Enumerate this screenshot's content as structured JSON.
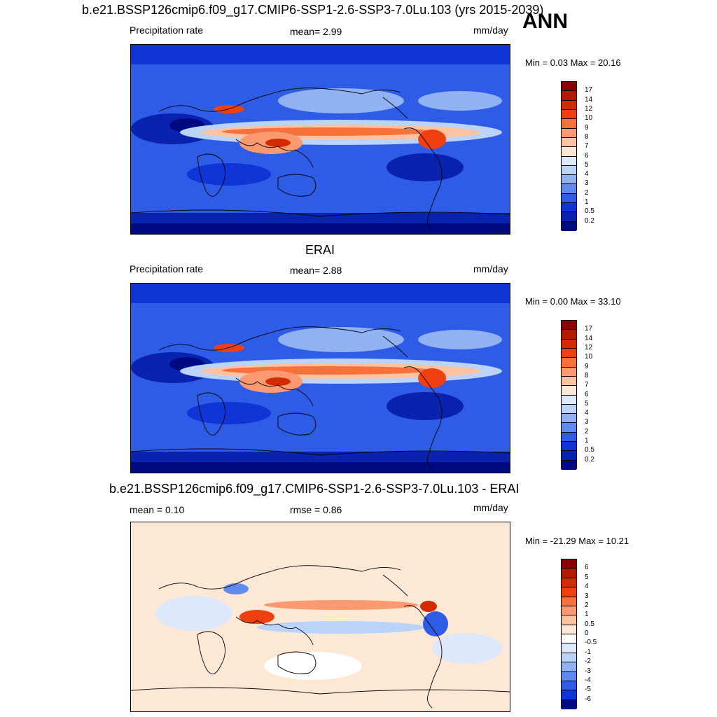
{
  "header": {
    "title": "b.e21.BSSP126cmip6.f09_g17.CMIP6-SSP1-2.6-SSP3-7.0Lu.103 (yrs 2015-2039)",
    "season": "ANN"
  },
  "panels": [
    {
      "title": "",
      "left_label": "Precipitation rate",
      "center_label": "mean=   2.99",
      "units": "mm/day",
      "minmax": "Min =   0.03 Max =  20.16",
      "colorbar": {
        "labels": [
          "17",
          "14",
          "12",
          "10",
          "9",
          "8",
          "7",
          "6",
          "5",
          "4",
          "3",
          "2",
          "1",
          "0.5",
          "0.2"
        ],
        "colors": [
          "#8b0000",
          "#b21a00",
          "#d42a00",
          "#f04010",
          "#f8703a",
          "#fb9970",
          "#fdc2a0",
          "#fde8d6",
          "#dde9fb",
          "#bcd3f8",
          "#90b2f2",
          "#5f8aee",
          "#2f5ce6",
          "#0f35d6",
          "#0a22b0",
          "#000a80"
        ]
      }
    },
    {
      "title": "ERAI",
      "left_label": "Precipitation rate",
      "center_label": "mean=   2.88",
      "units": "mm/day",
      "minmax": "Min =   0.00 Max =  33.10",
      "colorbar": {
        "labels": [
          "17",
          "14",
          "12",
          "10",
          "9",
          "8",
          "7",
          "6",
          "5",
          "4",
          "3",
          "2",
          "1",
          "0.5",
          "0.2"
        ],
        "colors": [
          "#8b0000",
          "#b21a00",
          "#d42a00",
          "#f04010",
          "#f8703a",
          "#fb9970",
          "#fdc2a0",
          "#fde8d6",
          "#dde9fb",
          "#bcd3f8",
          "#90b2f2",
          "#5f8aee",
          "#2f5ce6",
          "#0f35d6",
          "#0a22b0",
          "#000a80"
        ]
      }
    },
    {
      "title": "b.e21.BSSP126cmip6.f09_g17.CMIP6-SSP1-2.6-SSP3-7.0Lu.103 - ERAI",
      "left_label": "mean =   0.10",
      "center_label": "rmse =   0.86",
      "units": "mm/day",
      "minmax": "Min = -21.29 Max =  10.21",
      "colorbar": {
        "labels": [
          "6",
          "5",
          "4",
          "3",
          "2",
          "1",
          "0.5",
          "0",
          "-0.5",
          "-1",
          "-2",
          "-3",
          "-4",
          "-5",
          "-6"
        ],
        "colors": [
          "#8b0000",
          "#b21a00",
          "#d42a00",
          "#f04010",
          "#f8703a",
          "#fb9970",
          "#fdc2a0",
          "#fde8d6",
          "#ffffff",
          "#dde9fb",
          "#bcd3f8",
          "#90b2f2",
          "#5f8aee",
          "#2f5ce6",
          "#0f35d6",
          "#000a80"
        ]
      }
    }
  ],
  "chart_data": {
    "type": "heatmap",
    "title": "b.e21.BSSP126cmip6.f09_g17.CMIP6-SSP1-2.6-SSP3-7.0Lu.103 (yrs 2015-2039)",
    "season": "ANN",
    "variable": "Precipitation rate",
    "units": "mm/day",
    "panels": [
      {
        "name": "b.e21.BSSP126cmip6.f09_g17.CMIP6-SSP1-2.6-SSP3-7.0Lu.103 (yrs 2015-2039)",
        "mean": 2.99,
        "min": 0.03,
        "max": 20.16,
        "contour_levels": [
          0.2,
          0.5,
          1,
          2,
          3,
          4,
          5,
          6,
          7,
          8,
          9,
          10,
          12,
          14,
          17
        ]
      },
      {
        "name": "ERAI",
        "mean": 2.88,
        "min": 0.0,
        "max": 33.1,
        "contour_levels": [
          0.2,
          0.5,
          1,
          2,
          3,
          4,
          5,
          6,
          7,
          8,
          9,
          10,
          12,
          14,
          17
        ]
      },
      {
        "name": "b.e21.BSSP126cmip6.f09_g17.CMIP6-SSP1-2.6-SSP3-7.0Lu.103 - ERAI",
        "mean": 0.1,
        "rmse": 0.86,
        "min": -21.29,
        "max": 10.21,
        "contour_levels": [
          -6,
          -5,
          -4,
          -3,
          -2,
          -1,
          -0.5,
          0,
          0.5,
          1,
          2,
          3,
          4,
          5,
          6
        ]
      }
    ]
  }
}
